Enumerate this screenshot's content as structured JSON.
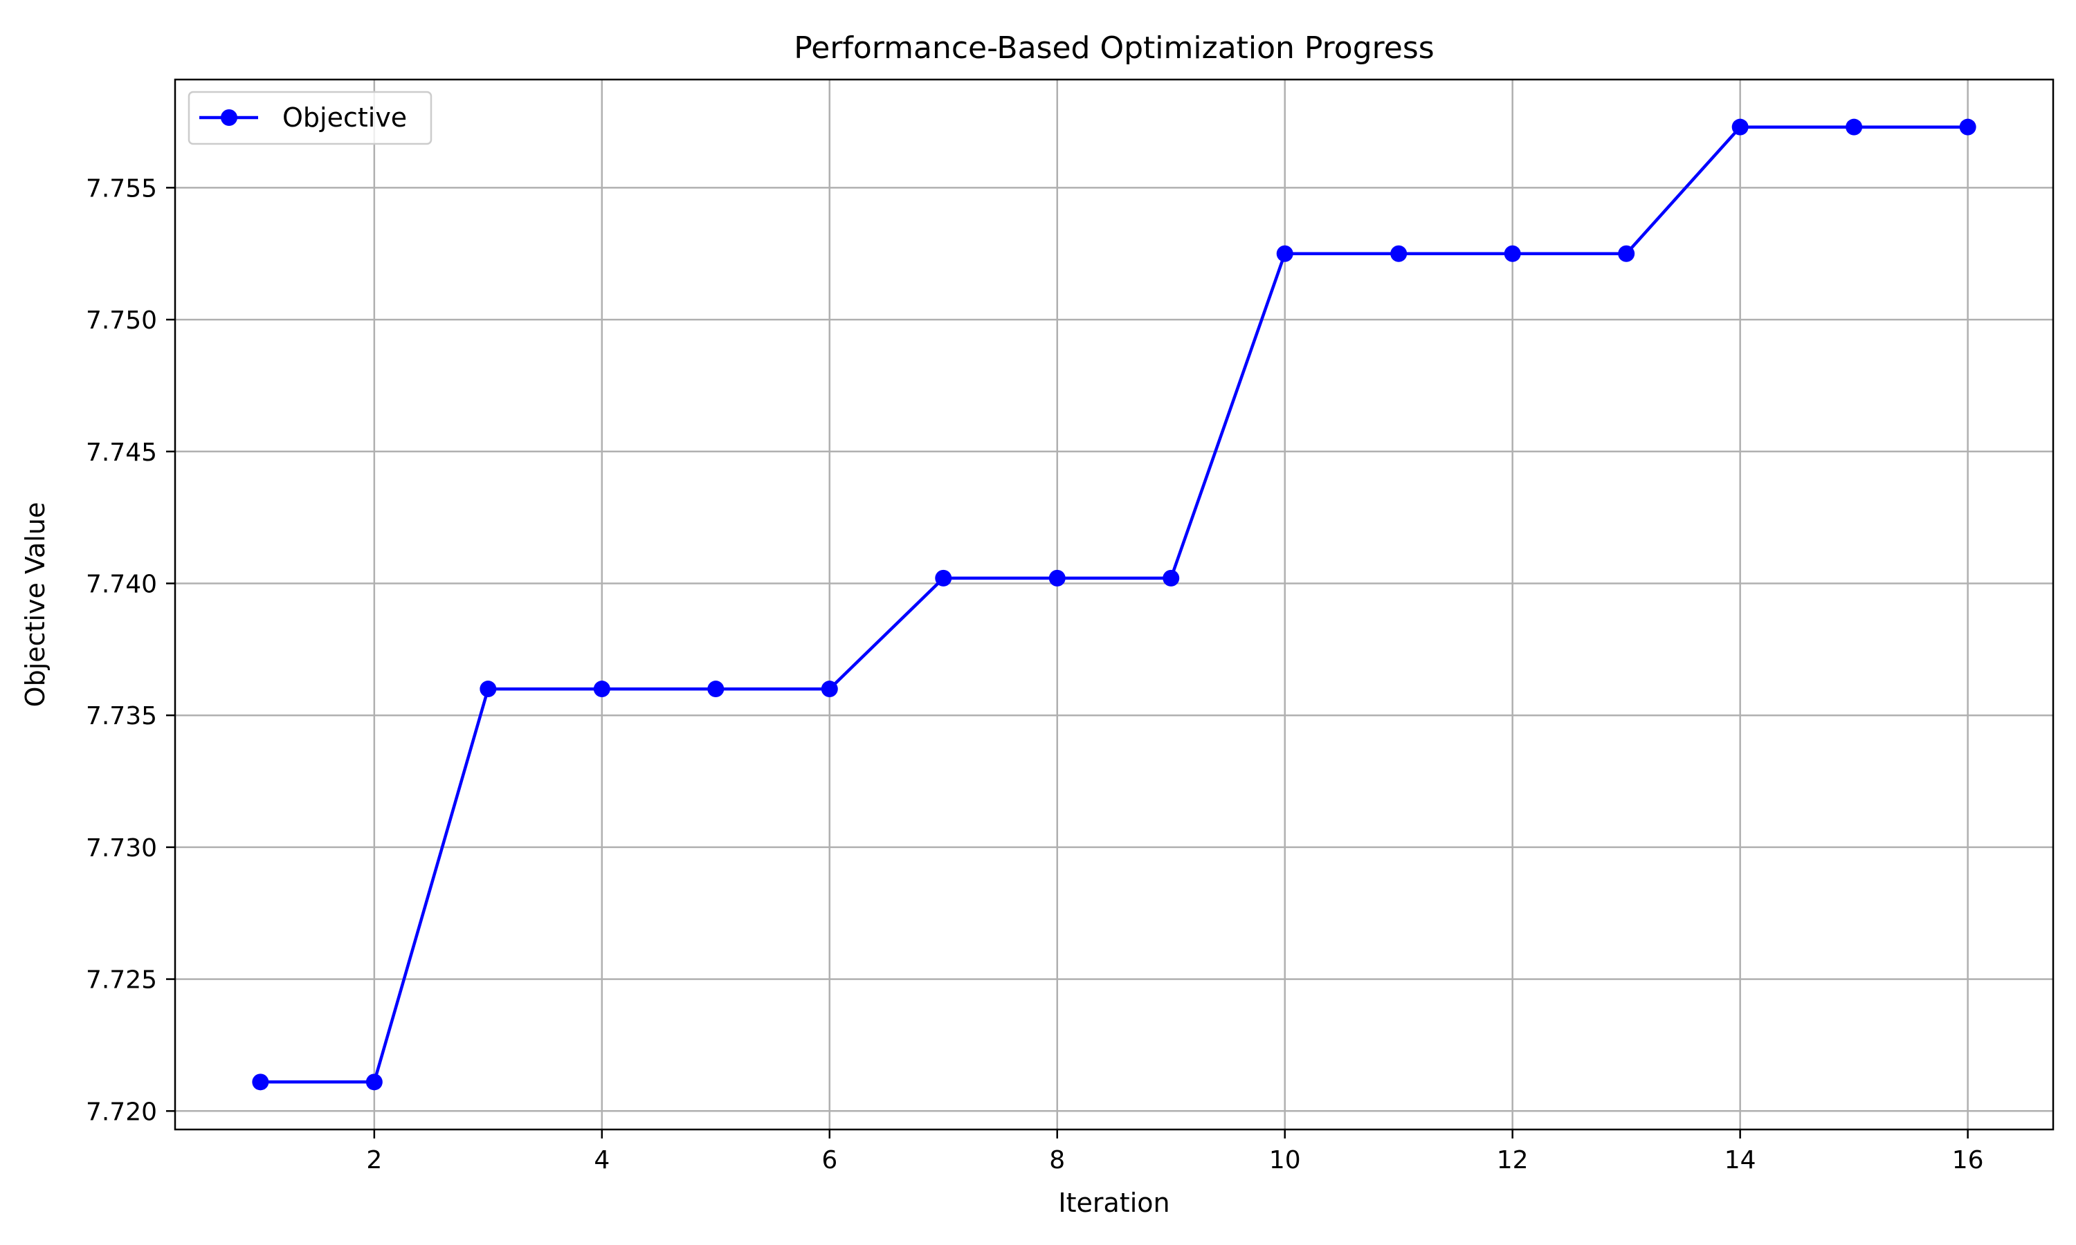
{
  "chart_data": {
    "type": "line",
    "title": "Performance-Based Optimization Progress",
    "xlabel": "Iteration",
    "ylabel": "Objective Value",
    "xlim": [
      0.25,
      16.75
    ],
    "ylim": [
      7.7193,
      7.7591
    ],
    "xticks": [
      2,
      4,
      6,
      8,
      10,
      12,
      14,
      16
    ],
    "yticks": [
      7.72,
      7.725,
      7.73,
      7.735,
      7.74,
      7.745,
      7.75,
      7.755
    ],
    "ytick_labels": [
      "7.720",
      "7.725",
      "7.730",
      "7.735",
      "7.740",
      "7.745",
      "7.750",
      "7.755"
    ],
    "grid": true,
    "legend_position": "upper-left",
    "series": [
      {
        "name": "Objective",
        "color": "#0000ff",
        "marker": "circle",
        "x": [
          1,
          2,
          3,
          4,
          5,
          6,
          7,
          8,
          9,
          10,
          11,
          12,
          13,
          14,
          15,
          16
        ],
        "y": [
          7.7211,
          7.7211,
          7.736,
          7.736,
          7.736,
          7.736,
          7.7402,
          7.7402,
          7.7402,
          7.7525,
          7.7525,
          7.7525,
          7.7525,
          7.7573,
          7.7573,
          7.7573
        ]
      }
    ]
  }
}
